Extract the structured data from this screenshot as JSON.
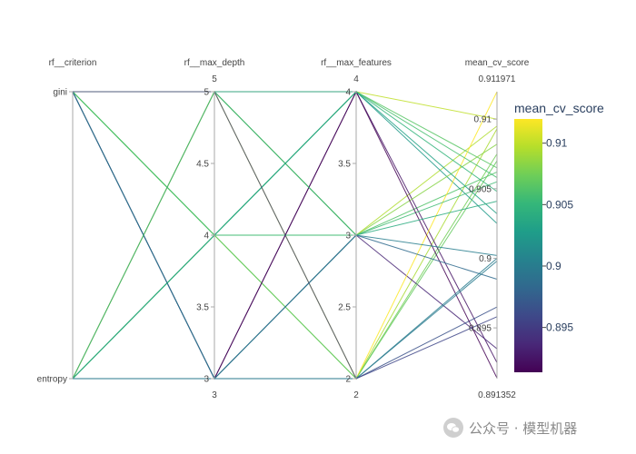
{
  "chart_data": {
    "type": "parallel_coordinates",
    "title": "",
    "dimensions": [
      {
        "label": "rf__criterion",
        "type": "categorical",
        "ticks": [
          {
            "value": 1,
            "text": "gini"
          },
          {
            "value": 0,
            "text": "entropy"
          }
        ],
        "range": [
          0,
          1
        ]
      },
      {
        "label": "rf__max_depth",
        "type": "numeric",
        "ticks": [
          {
            "value": 5,
            "text": "5"
          },
          {
            "value": 4.5,
            "text": "4.5"
          },
          {
            "value": 4,
            "text": "4"
          },
          {
            "value": 3.5,
            "text": "3.5"
          },
          {
            "value": 3,
            "text": "3"
          }
        ],
        "range": [
          3,
          5
        ],
        "range_labels": {
          "max": "5",
          "min": "3"
        }
      },
      {
        "label": "rf__max_features",
        "type": "numeric",
        "ticks": [
          {
            "value": 4,
            "text": "4"
          },
          {
            "value": 3.5,
            "text": "3.5"
          },
          {
            "value": 3,
            "text": "3"
          },
          {
            "value": 2.5,
            "text": "2.5"
          },
          {
            "value": 2,
            "text": "2"
          }
        ],
        "range": [
          2,
          4
        ],
        "range_labels": {
          "max": "4",
          "min": "2"
        }
      },
      {
        "label": "mean_cv_score",
        "type": "numeric",
        "ticks": [
          {
            "value": 0.91,
            "text": "0.91"
          },
          {
            "value": 0.905,
            "text": "0.905"
          },
          {
            "value": 0.9,
            "text": "0.9"
          },
          {
            "value": 0.895,
            "text": "0.895"
          }
        ],
        "range": [
          0.891352,
          0.911971
        ],
        "range_labels": {
          "max": "0.911971",
          "min": "0.891352"
        }
      }
    ],
    "records": [
      [
        1,
        5,
        4,
        0.91
      ],
      [
        1,
        5,
        3,
        0.9095
      ],
      [
        1,
        5,
        2,
        0.9093
      ],
      [
        1,
        4,
        4,
        0.9065
      ],
      [
        1,
        4,
        3,
        0.9062
      ],
      [
        1,
        4,
        2,
        0.9075
      ],
      [
        1,
        3,
        4,
        0.8925
      ],
      [
        1,
        3,
        3,
        0.8935
      ],
      [
        1,
        3,
        2,
        0.8965
      ],
      [
        0,
        5,
        4,
        0.9025
      ],
      [
        0,
        5,
        3,
        0.9082
      ],
      [
        0,
        5,
        2,
        0.91197
      ],
      [
        0,
        4,
        4,
        0.9048
      ],
      [
        0,
        4,
        3,
        0.9055
      ],
      [
        0,
        4,
        2,
        0.907
      ],
      [
        0,
        3,
        4,
        0.8914
      ],
      [
        0,
        3,
        3,
        0.8985
      ],
      [
        0,
        3,
        2,
        0.9
      ],
      [
        1,
        4,
        4,
        0.9058
      ],
      [
        0,
        4,
        4,
        0.9032
      ],
      [
        1,
        3,
        3,
        0.9002
      ],
      [
        0,
        5,
        3,
        0.9041
      ],
      [
        0,
        3,
        2,
        0.8998
      ],
      [
        1,
        5,
        2,
        0.8958
      ]
    ],
    "colorscale": {
      "name": "Viridis",
      "title": "mean_cv_score",
      "cmin": 0.891352,
      "cmax": 0.911971,
      "ticks": [
        0.91,
        0.905,
        0.9,
        0.895
      ],
      "tick_labels": [
        "0.91",
        "0.905",
        "0.9",
        "0.895"
      ]
    },
    "viridis": [
      "#440154",
      "#482878",
      "#3e4989",
      "#31688e",
      "#26828e",
      "#1f9e89",
      "#35b779",
      "#6ece58",
      "#b5de2b",
      "#fde725"
    ],
    "axis_color": "#aaaaaa"
  },
  "watermark": {
    "text": "公众号 · 模型机器"
  }
}
